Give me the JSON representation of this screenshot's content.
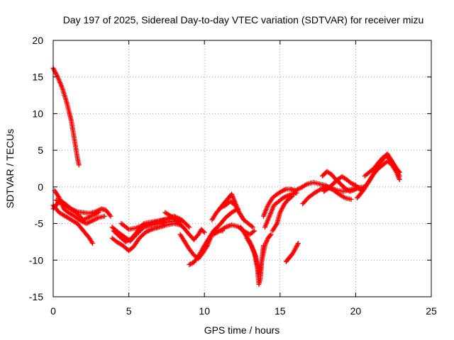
{
  "chart_data": {
    "type": "scatter",
    "title": "Day 197 of 2025, Sidereal Day-to-day VTEC variation (SDTVAR) for receiver mizu",
    "xlabel": "GPS time / hours",
    "ylabel": "SDTVAR / TECUs",
    "xlim": [
      0,
      25
    ],
    "ylim": [
      -15,
      20
    ],
    "x_ticks": [
      0,
      5,
      10,
      15,
      20,
      25
    ],
    "x_tick_labels": [
      "0",
      "5",
      "10",
      "15",
      "20",
      "25"
    ],
    "y_ticks": [
      -15,
      -10,
      -5,
      0,
      5,
      10,
      15,
      20
    ],
    "y_tick_labels": [
      "-15",
      "-10",
      "-5",
      "0",
      "5",
      "10",
      "15",
      "20"
    ],
    "grid": true,
    "legend": "none",
    "series": [
      {
        "name": "receiver mizu",
        "marker": "plus",
        "color": "#ff0000",
        "tracks": [
          {
            "x": [
              0.0,
              0.3,
              0.6,
              0.9,
              1.2,
              1.4,
              1.6,
              1.7
            ],
            "y": [
              16.2,
              15.0,
              13.5,
              11.5,
              9.0,
              6.5,
              4.0,
              3.0
            ]
          },
          {
            "x": [
              0.0,
              0.3,
              0.6,
              0.9,
              1.2,
              1.6,
              2.0,
              2.4,
              2.8,
              3.2,
              3.5,
              3.8
            ],
            "y": [
              -3.0,
              -2.2,
              -2.0,
              -2.5,
              -3.0,
              -3.4,
              -3.5,
              -3.6,
              -3.4,
              -3.0,
              -3.2,
              -4.0
            ]
          },
          {
            "x": [
              0.0,
              0.4,
              0.8,
              1.2,
              1.6,
              2.0,
              2.4,
              2.6
            ],
            "y": [
              -2.5,
              -3.5,
              -4.0,
              -4.5,
              -5.0,
              -6.0,
              -7.0,
              -7.7
            ]
          },
          {
            "x": [
              0.1,
              0.4,
              0.7,
              1.0,
              1.4,
              1.8,
              2.2,
              2.6,
              3.0,
              3.4
            ],
            "y": [
              -0.5,
              -1.5,
              -3.0,
              -3.5,
              -4.0,
              -4.6,
              -5.0,
              -4.6,
              -4.2,
              -4.0
            ]
          },
          {
            "x": [
              0.2,
              0.6,
              1.0,
              1.5,
              2.0,
              2.5,
              3.0
            ],
            "y": [
              -1.8,
              -2.2,
              -2.8,
              -3.5,
              -4.5,
              -4.0,
              -3.5
            ]
          },
          {
            "x": [
              3.9,
              4.2,
              4.6,
              5.0,
              5.3,
              5.7,
              6.1,
              6.5,
              7.0,
              7.5,
              8.0,
              8.4
            ],
            "y": [
              -7.0,
              -7.5,
              -8.0,
              -8.7,
              -8.2,
              -7.0,
              -6.2,
              -5.8,
              -5.5,
              -5.2,
              -5.0,
              -5.2
            ]
          },
          {
            "x": [
              3.9,
              4.3,
              4.7,
              5.1,
              5.5,
              6.0,
              6.5,
              7.0,
              7.5,
              8.0
            ],
            "y": [
              -5.5,
              -6.2,
              -6.8,
              -7.4,
              -6.5,
              -5.5,
              -5.2,
              -5.0,
              -4.8,
              -4.7
            ]
          },
          {
            "x": [
              4.0,
              4.4,
              4.8,
              5.2,
              5.6,
              6.0,
              6.5,
              7.0,
              7.5,
              8.0,
              8.5
            ],
            "y": [
              -6.0,
              -6.8,
              -7.5,
              -7.0,
              -6.0,
              -5.0,
              -4.8,
              -4.6,
              -4.4,
              -4.2,
              -4.8
            ]
          },
          {
            "x": [
              4.5,
              5.0,
              5.5,
              6.0,
              6.5,
              7.0,
              7.5,
              8.0,
              8.5,
              9.0
            ],
            "y": [
              -5.0,
              -5.8,
              -5.6,
              -5.2,
              -5.0,
              -4.7,
              -4.4,
              -4.0,
              -4.5,
              -5.5
            ]
          },
          {
            "x": [
              7.4,
              7.8,
              8.2,
              8.6,
              9.0,
              9.3,
              9.6,
              9.8,
              10.0
            ],
            "y": [
              -3.5,
              -4.0,
              -4.8,
              -5.5,
              -6.5,
              -7.2,
              -6.5,
              -5.8,
              -6.2
            ]
          },
          {
            "x": [
              8.4,
              8.7,
              9.0,
              9.3,
              9.6,
              9.9,
              10.2,
              10.5,
              10.8,
              11.2
            ],
            "y": [
              -6.5,
              -7.5,
              -8.5,
              -9.3,
              -9.8,
              -9.0,
              -8.0,
              -6.5,
              -6.0,
              -6.0
            ]
          },
          {
            "x": [
              9.0,
              9.3,
              9.6,
              10.0,
              10.3,
              10.6,
              11.0,
              11.4,
              11.8,
              12.2
            ],
            "y": [
              -10.6,
              -10.3,
              -9.5,
              -8.0,
              -7.0,
              -6.0,
              -5.2,
              -4.2,
              -3.5,
              -3.0
            ]
          },
          {
            "x": [
              10.5,
              10.8,
              11.1,
              11.4,
              11.7,
              12.0,
              12.3,
              12.6
            ],
            "y": [
              -4.5,
              -3.5,
              -2.8,
              -2.5,
              -2.0,
              -2.4,
              -3.5,
              -4.5
            ]
          },
          {
            "x": [
              11.0,
              11.3,
              11.6,
              11.8,
              12.0,
              12.3,
              12.6,
              12.9,
              13.2
            ],
            "y": [
              -3.0,
              -2.2,
              -1.5,
              -1.0,
              -2.0,
              -3.5,
              -4.5,
              -5.0,
              -5.5
            ]
          },
          {
            "x": [
              10.6,
              11.0,
              11.4,
              11.8,
              12.2,
              12.6,
              13.0,
              13.3
            ],
            "y": [
              -6.5,
              -6.0,
              -5.5,
              -5.2,
              -5.4,
              -6.0,
              -6.5,
              -6.0
            ]
          },
          {
            "x": [
              12.4,
              12.7,
              13.0,
              13.3,
              13.5,
              13.6,
              13.7,
              13.8,
              13.9
            ],
            "y": [
              -5.5,
              -6.5,
              -7.5,
              -9.0,
              -11.0,
              -13.3,
              -12.5,
              -10.0,
              -8.0
            ]
          },
          {
            "x": [
              12.8,
              13.1,
              13.4,
              13.6,
              13.8,
              14.0,
              14.2,
              14.4
            ],
            "y": [
              -7.0,
              -8.0,
              -9.5,
              -12.0,
              -10.0,
              -8.0,
              -7.0,
              -6.5
            ]
          },
          {
            "x": [
              13.9,
              14.2,
              14.5,
              14.8,
              15.1,
              15.4,
              15.7,
              16.0
            ],
            "y": [
              -4.0,
              -2.5,
              -1.5,
              -1.0,
              -0.6,
              -0.3,
              -0.3,
              -0.5
            ]
          },
          {
            "x": [
              14.0,
              14.3,
              14.6,
              14.9,
              15.2,
              15.5,
              15.8,
              16.1
            ],
            "y": [
              -5.5,
              -4.0,
              -2.5,
              -2.0,
              -1.5,
              -1.2,
              -1.0,
              -0.8
            ]
          },
          {
            "x": [
              14.5,
              14.8,
              15.0,
              15.3,
              15.6,
              15.8
            ],
            "y": [
              -6.0,
              -5.0,
              -3.5,
              -2.3,
              -1.6,
              -1.3
            ]
          },
          {
            "x": [
              15.4,
              15.6,
              15.8,
              16.0,
              16.2
            ],
            "y": [
              -10.2,
              -9.7,
              -9.2,
              -8.5,
              -7.7
            ]
          },
          {
            "x": [
              16.0,
              16.4,
              16.8,
              17.2,
              17.6,
              18.0,
              18.4,
              18.8,
              19.2,
              19.6,
              20.0
            ],
            "y": [
              -0.5,
              -0.1,
              0.4,
              0.6,
              0.4,
              0.2,
              -0.2,
              -0.5,
              -0.6,
              -0.4,
              -0.2
            ]
          },
          {
            "x": [
              16.5,
              16.9,
              17.3,
              17.7,
              18.1,
              18.5,
              18.9,
              19.3,
              19.7
            ],
            "y": [
              -2.3,
              -1.4,
              -0.8,
              -0.3,
              0.0,
              -0.4,
              -1.0,
              -1.5,
              -1.7
            ]
          },
          {
            "x": [
              17.8,
              18.1,
              18.4,
              18.7,
              19.0,
              19.3,
              19.6,
              19.9,
              20.2,
              20.5
            ],
            "y": [
              1.5,
              2.1,
              1.7,
              1.0,
              0.4,
              -0.2,
              -0.6,
              -0.4,
              -0.1,
              0.0
            ]
          },
          {
            "x": [
              17.9,
              18.2,
              18.5,
              18.8,
              19.1,
              19.4,
              19.7,
              20.0,
              20.3
            ],
            "y": [
              -0.6,
              -0.2,
              0.4,
              1.0,
              1.4,
              1.0,
              0.5,
              0.2,
              -0.3
            ]
          },
          {
            "x": [
              20.1,
              20.5,
              20.8,
              21.1,
              21.4,
              21.7,
              22.0,
              22.3,
              22.6,
              22.9
            ],
            "y": [
              -1.5,
              -0.5,
              0.5,
              1.5,
              2.5,
              3.5,
              4.2,
              3.8,
              2.8,
              1.5
            ]
          },
          {
            "x": [
              20.3,
              20.6,
              20.9,
              21.2,
              21.5,
              21.8,
              22.1,
              22.4,
              22.7,
              22.9
            ],
            "y": [
              -0.5,
              0.0,
              0.8,
              1.8,
              2.5,
              3.0,
              3.5,
              3.0,
              2.0,
              1.0
            ]
          },
          {
            "x": [
              20.6,
              20.9,
              21.2,
              21.5,
              21.8,
              22.1,
              22.4,
              22.7,
              22.9
            ],
            "y": [
              1.5,
              2.0,
              2.5,
              3.3,
              4.0,
              4.5,
              3.5,
              2.5,
              2.0
            ]
          }
        ]
      }
    ]
  }
}
